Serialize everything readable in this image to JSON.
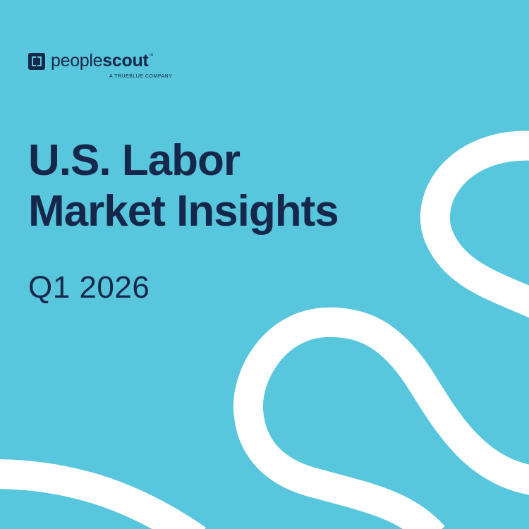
{
  "colors": {
    "background": "#58c6dc",
    "text": "#15284b",
    "curves": "#ffffff"
  },
  "logo": {
    "name_part1": "people",
    "name_part2": "scout",
    "trademark": "™",
    "tagline": "A TRUEBLUE COMPANY"
  },
  "title": {
    "line1": "U.S. Labor",
    "line2": "Market Insights"
  },
  "subtitle": "Q1 2026"
}
